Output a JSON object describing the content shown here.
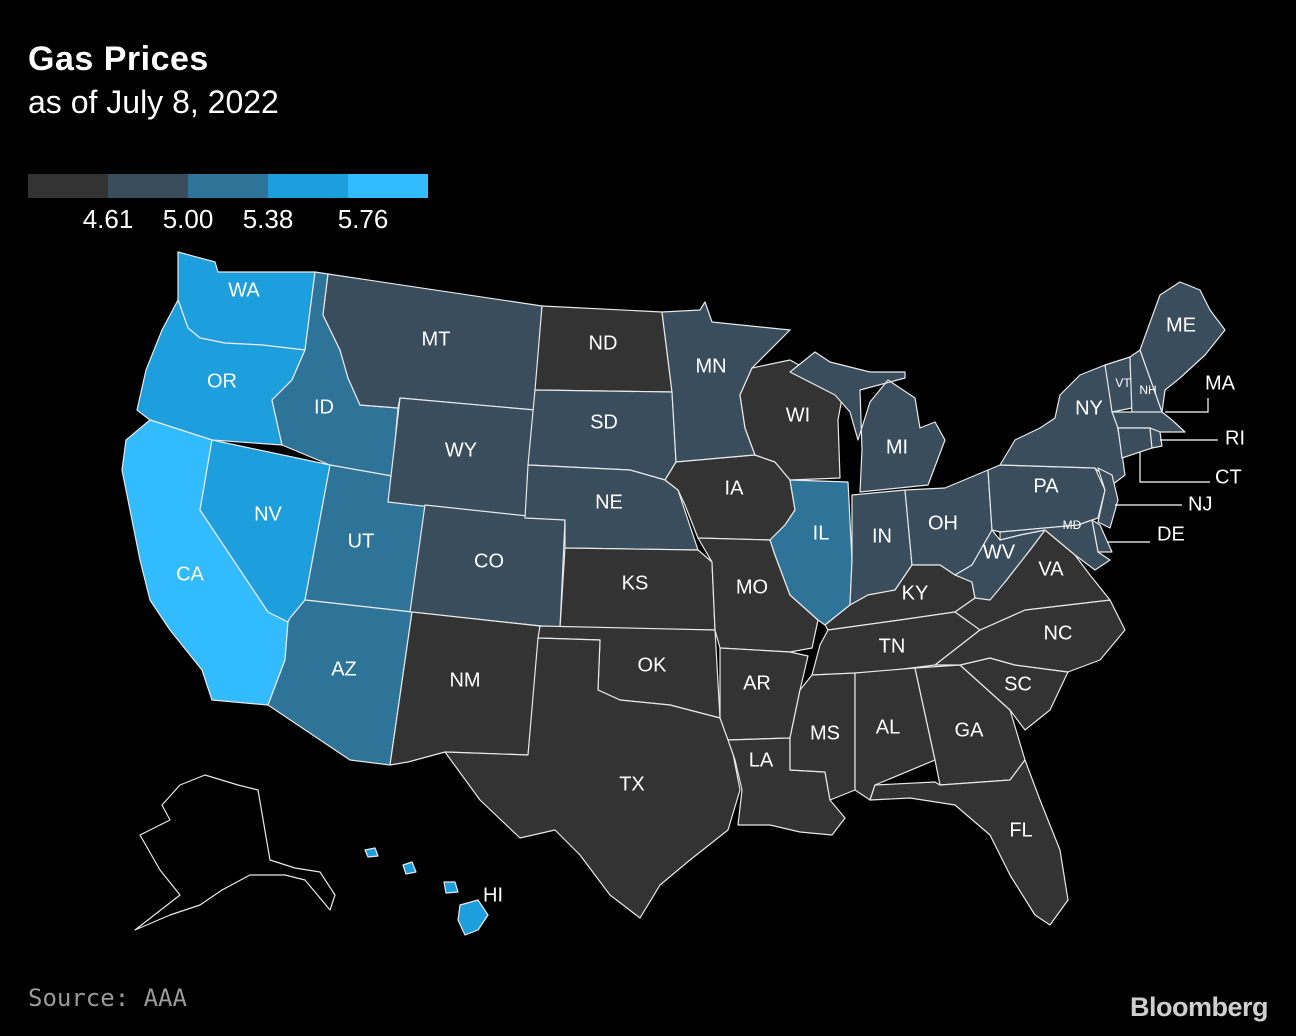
{
  "title": "Gas Prices",
  "subtitle": "as of July 8, 2022",
  "legend": {
    "colors": [
      "#333333",
      "#3a4d5c",
      "#2e7398",
      "#1e9fdd",
      "#33bbff"
    ],
    "ticks": [
      "4.61",
      "5.00",
      "5.38",
      "5.76"
    ]
  },
  "states": [
    {
      "abbr": "WA",
      "bin": 3
    },
    {
      "abbr": "OR",
      "bin": 3
    },
    {
      "abbr": "CA",
      "bin": 4
    },
    {
      "abbr": "NV",
      "bin": 3
    },
    {
      "abbr": "ID",
      "bin": 2
    },
    {
      "abbr": "UT",
      "bin": 2
    },
    {
      "abbr": "AZ",
      "bin": 2
    },
    {
      "abbr": "MT",
      "bin": 1
    },
    {
      "abbr": "WY",
      "bin": 1
    },
    {
      "abbr": "CO",
      "bin": 1
    },
    {
      "abbr": "NM",
      "bin": 0
    },
    {
      "abbr": "ND",
      "bin": 0
    },
    {
      "abbr": "SD",
      "bin": 1
    },
    {
      "abbr": "NE",
      "bin": 1
    },
    {
      "abbr": "KS",
      "bin": 0
    },
    {
      "abbr": "OK",
      "bin": 0
    },
    {
      "abbr": "TX",
      "bin": 0
    },
    {
      "abbr": "MN",
      "bin": 1
    },
    {
      "abbr": "IA",
      "bin": 0
    },
    {
      "abbr": "MO",
      "bin": 0
    },
    {
      "abbr": "AR",
      "bin": 0
    },
    {
      "abbr": "LA",
      "bin": 0
    },
    {
      "abbr": "WI",
      "bin": 0
    },
    {
      "abbr": "IL",
      "bin": 2
    },
    {
      "abbr": "MI",
      "bin": 1
    },
    {
      "abbr": "IN",
      "bin": 1
    },
    {
      "abbr": "OH",
      "bin": 1
    },
    {
      "abbr": "KY",
      "bin": 0
    },
    {
      "abbr": "TN",
      "bin": 0
    },
    {
      "abbr": "MS",
      "bin": 0
    },
    {
      "abbr": "AL",
      "bin": 0
    },
    {
      "abbr": "GA",
      "bin": 0
    },
    {
      "abbr": "FL",
      "bin": 0
    },
    {
      "abbr": "SC",
      "bin": 0
    },
    {
      "abbr": "NC",
      "bin": 0
    },
    {
      "abbr": "VA",
      "bin": 0
    },
    {
      "abbr": "WV",
      "bin": 1
    },
    {
      "abbr": "PA",
      "bin": 1
    },
    {
      "abbr": "NY",
      "bin": 1
    },
    {
      "abbr": "VT",
      "bin": 1
    },
    {
      "abbr": "NH",
      "bin": 1
    },
    {
      "abbr": "ME",
      "bin": 1
    },
    {
      "abbr": "MA",
      "bin": 1
    },
    {
      "abbr": "RI",
      "bin": 1
    },
    {
      "abbr": "CT",
      "bin": 1
    },
    {
      "abbr": "NJ",
      "bin": 1
    },
    {
      "abbr": "DE",
      "bin": 1
    },
    {
      "abbr": "MD",
      "bin": 1
    },
    {
      "abbr": "AK",
      "bin": 0
    },
    {
      "abbr": "HI",
      "bin": 3
    }
  ],
  "source": "Source: AAA",
  "brand": "Bloomberg"
}
